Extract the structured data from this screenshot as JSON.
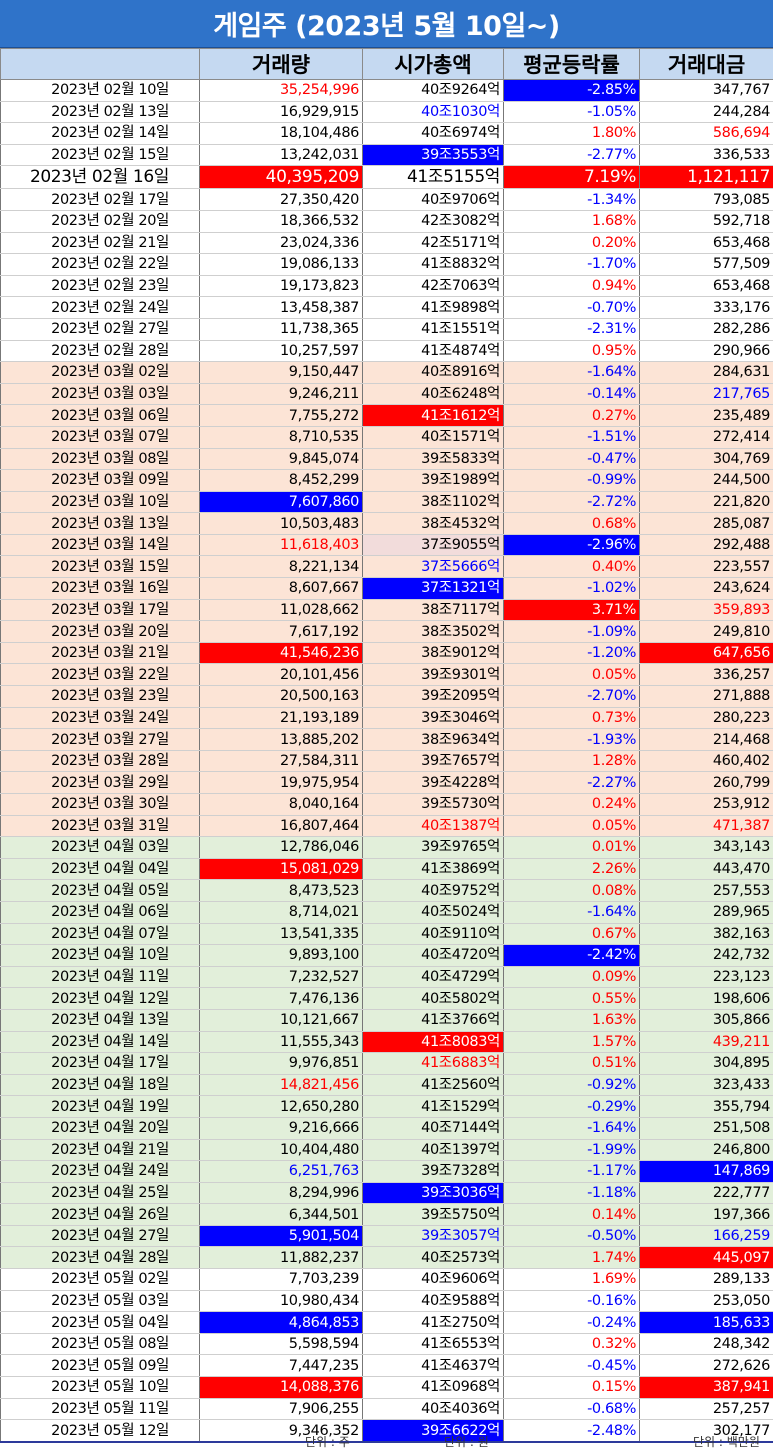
{
  "title": "게임주 (2023년 5월 10일~)",
  "headers": [
    "",
    "거래량",
    "시가총액",
    "평균등락률",
    "거래대금"
  ],
  "units": {
    "volume": "단위 : 주",
    "cap": "단위 : 원",
    "amount": "단위 : 백만원"
  },
  "colors": {
    "red": "#ff0000",
    "blue": "#0000ff",
    "header_bg": "#c5d9f1",
    "title_bg": "#2f73c9",
    "march_bg": "#fce4d6",
    "april_bg": "#e2efda"
  },
  "rows": [
    {
      "date": "2023년 02월 10일",
      "vol": "35,254,996",
      "cap": "40조9264억",
      "chg": "-2.85%",
      "amt": "347,767",
      "zone": "feb",
      "vol_s": "t-red",
      "chg_s": "hl-blue"
    },
    {
      "date": "2023년 02월 13일",
      "vol": "16,929,915",
      "cap": "40조1030억",
      "chg": "-1.05%",
      "amt": "244,284",
      "zone": "feb",
      "cap_s": "t-blue",
      "chg_s": "t-blue"
    },
    {
      "date": "2023년 02월 14일",
      "vol": "18,104,486",
      "cap": "40조6974억",
      "chg": "1.80%",
      "amt": "586,694",
      "zone": "feb",
      "chg_s": "t-red",
      "amt_s": "t-red"
    },
    {
      "date": "2023년 02월 15일",
      "vol": "13,242,031",
      "cap": "39조3553억",
      "chg": "-2.77%",
      "amt": "336,533",
      "zone": "feb",
      "cap_s": "hl-blue",
      "chg_s": "t-blue"
    },
    {
      "date": "2023년 02월 16일",
      "vol": "40,395,209",
      "cap": "41조5155억",
      "chg": "7.19%",
      "amt": "1,121,117",
      "zone": "feb",
      "big": true,
      "vol_s": "hl-red",
      "chg_s": "hl-red",
      "amt_s": "hl-red"
    },
    {
      "date": "2023년 02월 17일",
      "vol": "27,350,420",
      "cap": "40조9706억",
      "chg": "-1.34%",
      "amt": "793,085",
      "zone": "feb",
      "chg_s": "t-blue"
    },
    {
      "date": "2023년 02월 20일",
      "vol": "18,366,532",
      "cap": "42조3082억",
      "chg": "1.68%",
      "amt": "592,718",
      "zone": "feb",
      "chg_s": "t-red"
    },
    {
      "date": "2023년 02월 21일",
      "vol": "23,024,336",
      "cap": "42조5171억",
      "chg": "0.20%",
      "amt": "653,468",
      "zone": "feb",
      "chg_s": "t-red"
    },
    {
      "date": "2023년 02월 22일",
      "vol": "19,086,133",
      "cap": "41조8832억",
      "chg": "-1.70%",
      "amt": "577,509",
      "zone": "feb",
      "chg_s": "t-blue"
    },
    {
      "date": "2023년 02월 23일",
      "vol": "19,173,823",
      "cap": "42조7063억",
      "chg": "0.94%",
      "amt": "653,468",
      "zone": "feb",
      "chg_s": "t-red"
    },
    {
      "date": "2023년 02월 24일",
      "vol": "13,458,387",
      "cap": "41조9898억",
      "chg": "-0.70%",
      "amt": "333,176",
      "zone": "feb",
      "chg_s": "t-blue"
    },
    {
      "date": "2023년 02월 27일",
      "vol": "11,738,365",
      "cap": "41조1551억",
      "chg": "-2.31%",
      "amt": "282,286",
      "zone": "feb",
      "chg_s": "t-blue"
    },
    {
      "date": "2023년 02월 28일",
      "vol": "10,257,597",
      "cap": "41조4874억",
      "chg": "0.95%",
      "amt": "290,966",
      "zone": "feb",
      "chg_s": "t-red"
    },
    {
      "date": "2023년 03월 02일",
      "vol": "9,150,447",
      "cap": "40조8916억",
      "chg": "-1.64%",
      "amt": "284,631",
      "zone": "mar",
      "chg_s": "t-blue"
    },
    {
      "date": "2023년 03월 03일",
      "vol": "9,246,211",
      "cap": "40조6248억",
      "chg": "-0.14%",
      "amt": "217,765",
      "zone": "mar",
      "chg_s": "t-blue",
      "amt_s": "t-blue"
    },
    {
      "date": "2023년 03월 06일",
      "vol": "7,755,272",
      "cap": "41조1612억",
      "chg": "0.27%",
      "amt": "235,489",
      "zone": "mar",
      "cap_s": "hl-red",
      "chg_s": "t-red"
    },
    {
      "date": "2023년 03월 07일",
      "vol": "8,710,535",
      "cap": "40조1571억",
      "chg": "-1.51%",
      "amt": "272,414",
      "zone": "mar",
      "chg_s": "t-blue"
    },
    {
      "date": "2023년 03월 08일",
      "vol": "9,845,074",
      "cap": "39조5833억",
      "chg": "-0.47%",
      "amt": "304,769",
      "zone": "mar",
      "chg_s": "t-blue"
    },
    {
      "date": "2023년 03월 09일",
      "vol": "8,452,299",
      "cap": "39조1989억",
      "chg": "-0.99%",
      "amt": "244,500",
      "zone": "mar",
      "chg_s": "t-blue"
    },
    {
      "date": "2023년 03월 10일",
      "vol": "7,607,860",
      "cap": "38조1102억",
      "chg": "-2.72%",
      "amt": "221,820",
      "zone": "mar",
      "vol_s": "hl-blue",
      "chg_s": "t-blue"
    },
    {
      "date": "2023년 03월 13일",
      "vol": "10,503,483",
      "cap": "38조4532억",
      "chg": "0.68%",
      "amt": "285,087",
      "zone": "mar",
      "chg_s": "t-red"
    },
    {
      "date": "2023년 03월 14일",
      "vol": "11,618,403",
      "cap": "37조9055억",
      "chg": "-2.96%",
      "amt": "292,488",
      "zone": "mar",
      "vol_s": "t-red",
      "cap_s": "hl-pink",
      "chg_s": "hl-blue"
    },
    {
      "date": "2023년 03월 15일",
      "vol": "8,221,134",
      "cap": "37조5666억",
      "chg": "0.40%",
      "amt": "223,557",
      "zone": "mar",
      "cap_s": "t-blue",
      "chg_s": "t-red"
    },
    {
      "date": "2023년 03월 16일",
      "vol": "8,607,667",
      "cap": "37조1321억",
      "chg": "-1.02%",
      "amt": "243,624",
      "zone": "mar",
      "cap_s": "hl-blue",
      "chg_s": "t-blue"
    },
    {
      "date": "2023년 03월 17일",
      "vol": "11,028,662",
      "cap": "38조7117억",
      "chg": "3.71%",
      "amt": "359,893",
      "zone": "mar",
      "chg_s": "hl-red",
      "amt_s": "t-red"
    },
    {
      "date": "2023년 03월 20일",
      "vol": "7,617,192",
      "cap": "38조3502억",
      "chg": "-1.09%",
      "amt": "249,810",
      "zone": "mar",
      "chg_s": "t-blue"
    },
    {
      "date": "2023년 03월 21일",
      "vol": "41,546,236",
      "cap": "38조9012억",
      "chg": "-1.20%",
      "amt": "647,656",
      "zone": "mar",
      "vol_s": "hl-red",
      "chg_s": "t-blue",
      "amt_s": "hl-red"
    },
    {
      "date": "2023년 03월 22일",
      "vol": "20,101,456",
      "cap": "39조9301억",
      "chg": "0.05%",
      "amt": "336,257",
      "zone": "mar",
      "chg_s": "t-red"
    },
    {
      "date": "2023년 03월 23일",
      "vol": "20,500,163",
      "cap": "39조2095억",
      "chg": "-2.70%",
      "amt": "271,888",
      "zone": "mar",
      "chg_s": "t-blue"
    },
    {
      "date": "2023년 03월 24일",
      "vol": "21,193,189",
      "cap": "39조3046억",
      "chg": "0.73%",
      "amt": "280,223",
      "zone": "mar",
      "chg_s": "t-red"
    },
    {
      "date": "2023년 03월 27일",
      "vol": "13,885,202",
      "cap": "38조9634억",
      "chg": "-1.93%",
      "amt": "214,468",
      "zone": "mar",
      "chg_s": "t-blue"
    },
    {
      "date": "2023년 03월 28일",
      "vol": "27,584,311",
      "cap": "39조7657억",
      "chg": "1.28%",
      "amt": "460,402",
      "zone": "mar",
      "chg_s": "t-red"
    },
    {
      "date": "2023년 03월 29일",
      "vol": "19,975,954",
      "cap": "39조4228억",
      "chg": "-2.27%",
      "amt": "260,799",
      "zone": "mar",
      "chg_s": "t-blue"
    },
    {
      "date": "2023년 03월 30일",
      "vol": "8,040,164",
      "cap": "39조5730억",
      "chg": "0.24%",
      "amt": "253,912",
      "zone": "mar",
      "chg_s": "t-red"
    },
    {
      "date": "2023년 03월 31일",
      "vol": "16,807,464",
      "cap": "40조1387억",
      "chg": "0.05%",
      "amt": "471,387",
      "zone": "mar",
      "cap_s": "t-red",
      "chg_s": "t-red",
      "amt_s": "t-red"
    },
    {
      "date": "2023년 04월 03일",
      "vol": "12,786,046",
      "cap": "39조9765억",
      "chg": "0.01%",
      "amt": "343,143",
      "zone": "apr",
      "chg_s": "t-red"
    },
    {
      "date": "2023년 04월 04일",
      "vol": "15,081,029",
      "cap": "41조3869억",
      "chg": "2.26%",
      "amt": "443,470",
      "zone": "apr",
      "vol_s": "hl-red",
      "chg_s": "t-red"
    },
    {
      "date": "2023년 04월 05일",
      "vol": "8,473,523",
      "cap": "40조9752억",
      "chg": "0.08%",
      "amt": "257,553",
      "zone": "apr",
      "chg_s": "t-red"
    },
    {
      "date": "2023년 04월 06일",
      "vol": "8,714,021",
      "cap": "40조5024억",
      "chg": "-1.64%",
      "amt": "289,965",
      "zone": "apr",
      "chg_s": "t-blue"
    },
    {
      "date": "2023년 04월 07일",
      "vol": "13,541,335",
      "cap": "40조9110억",
      "chg": "0.67%",
      "amt": "382,163",
      "zone": "apr",
      "chg_s": "t-red"
    },
    {
      "date": "2023년 04월 10일",
      "vol": "9,893,100",
      "cap": "40조4720억",
      "chg": "-2.42%",
      "amt": "242,732",
      "zone": "apr",
      "chg_s": "hl-blue"
    },
    {
      "date": "2023년 04월 11일",
      "vol": "7,232,527",
      "cap": "40조4729억",
      "chg": "0.09%",
      "amt": "223,123",
      "zone": "apr",
      "chg_s": "t-red"
    },
    {
      "date": "2023년 04월 12일",
      "vol": "7,476,136",
      "cap": "40조5802억",
      "chg": "0.55%",
      "amt": "198,606",
      "zone": "apr",
      "chg_s": "t-red"
    },
    {
      "date": "2023년 04월 13일",
      "vol": "10,121,667",
      "cap": "41조3766억",
      "chg": "1.63%",
      "amt": "305,866",
      "zone": "apr",
      "chg_s": "t-red"
    },
    {
      "date": "2023년 04월 14일",
      "vol": "11,555,343",
      "cap": "41조8083억",
      "chg": "1.57%",
      "amt": "439,211",
      "zone": "apr",
      "cap_s": "hl-red",
      "chg_s": "t-red",
      "amt_s": "t-red"
    },
    {
      "date": "2023년 04월 17일",
      "vol": "9,976,851",
      "cap": "41조6883억",
      "chg": "0.51%",
      "amt": "304,895",
      "zone": "apr",
      "cap_s": "t-red",
      "chg_s": "t-red"
    },
    {
      "date": "2023년 04월 18일",
      "vol": "14,821,456",
      "cap": "41조2560억",
      "chg": "-0.92%",
      "amt": "323,433",
      "zone": "apr",
      "vol_s": "t-red",
      "chg_s": "t-blue"
    },
    {
      "date": "2023년 04월 19일",
      "vol": "12,650,280",
      "cap": "41조1529억",
      "chg": "-0.29%",
      "amt": "355,794",
      "zone": "apr",
      "chg_s": "t-blue"
    },
    {
      "date": "2023년 04월 20일",
      "vol": "9,216,666",
      "cap": "40조7144억",
      "chg": "-1.64%",
      "amt": "251,508",
      "zone": "apr",
      "chg_s": "t-blue"
    },
    {
      "date": "2023년 04월 21일",
      "vol": "10,404,480",
      "cap": "40조1397억",
      "chg": "-1.99%",
      "amt": "246,800",
      "zone": "apr",
      "chg_s": "t-blue"
    },
    {
      "date": "2023년 04월 24일",
      "vol": "6,251,763",
      "cap": "39조7328억",
      "chg": "-1.17%",
      "amt": "147,869",
      "zone": "apr",
      "vol_s": "t-blue",
      "chg_s": "t-blue",
      "amt_s": "hl-blue"
    },
    {
      "date": "2023년 04월 25일",
      "vol": "8,294,996",
      "cap": "39조3036억",
      "chg": "-1.18%",
      "amt": "222,777",
      "zone": "apr",
      "cap_s": "hl-blue",
      "chg_s": "t-blue"
    },
    {
      "date": "2023년 04월 26일",
      "vol": "6,344,501",
      "cap": "39조5750억",
      "chg": "0.14%",
      "amt": "197,366",
      "zone": "apr",
      "chg_s": "t-red"
    },
    {
      "date": "2023년 04월 27일",
      "vol": "5,901,504",
      "cap": "39조3057억",
      "chg": "-0.50%",
      "amt": "166,259",
      "zone": "apr",
      "vol_s": "hl-blue",
      "cap_s": "t-blue",
      "chg_s": "t-blue",
      "amt_s": "t-blue"
    },
    {
      "date": "2023년 04월 28일",
      "vol": "11,882,237",
      "cap": "40조2573억",
      "chg": "1.74%",
      "amt": "445,097",
      "zone": "apr",
      "chg_s": "t-red",
      "amt_s": "hl-red"
    },
    {
      "date": "2023년 05월 02일",
      "vol": "7,703,239",
      "cap": "40조9606억",
      "chg": "1.69%",
      "amt": "289,133",
      "zone": "may",
      "chg_s": "t-red"
    },
    {
      "date": "2023년 05월 03일",
      "vol": "10,980,434",
      "cap": "40조9588억",
      "chg": "-0.16%",
      "amt": "253,050",
      "zone": "may",
      "chg_s": "t-blue"
    },
    {
      "date": "2023년 05월 04일",
      "vol": "4,864,853",
      "cap": "41조2750억",
      "chg": "-0.24%",
      "amt": "185,633",
      "zone": "may",
      "vol_s": "hl-blue",
      "chg_s": "t-blue",
      "amt_s": "hl-blue"
    },
    {
      "date": "2023년 05월 08일",
      "vol": "5,598,594",
      "cap": "41조6553억",
      "chg": "0.32%",
      "amt": "248,342",
      "zone": "may",
      "chg_s": "t-red"
    },
    {
      "date": "2023년 05월 09일",
      "vol": "7,447,235",
      "cap": "41조4637억",
      "chg": "-0.45%",
      "amt": "272,626",
      "zone": "may",
      "chg_s": "t-blue"
    },
    {
      "date": "2023년 05월 10일",
      "vol": "14,088,376",
      "cap": "41조0968억",
      "chg": "0.15%",
      "amt": "387,941",
      "zone": "may",
      "vol_s": "hl-red",
      "chg_s": "t-red",
      "amt_s": "hl-red"
    },
    {
      "date": "2023년 05월 11일",
      "vol": "7,906,255",
      "cap": "40조4036억",
      "chg": "-0.68%",
      "amt": "257,257",
      "zone": "may",
      "chg_s": "t-blue"
    },
    {
      "date": "2023년 05월 12일",
      "vol": "9,346,352",
      "cap": "39조6622억",
      "chg": "-2.48%",
      "amt": "302,177",
      "zone": "may",
      "last": true,
      "cap_s": "hl-blue",
      "chg_s": "t-blue"
    }
  ]
}
